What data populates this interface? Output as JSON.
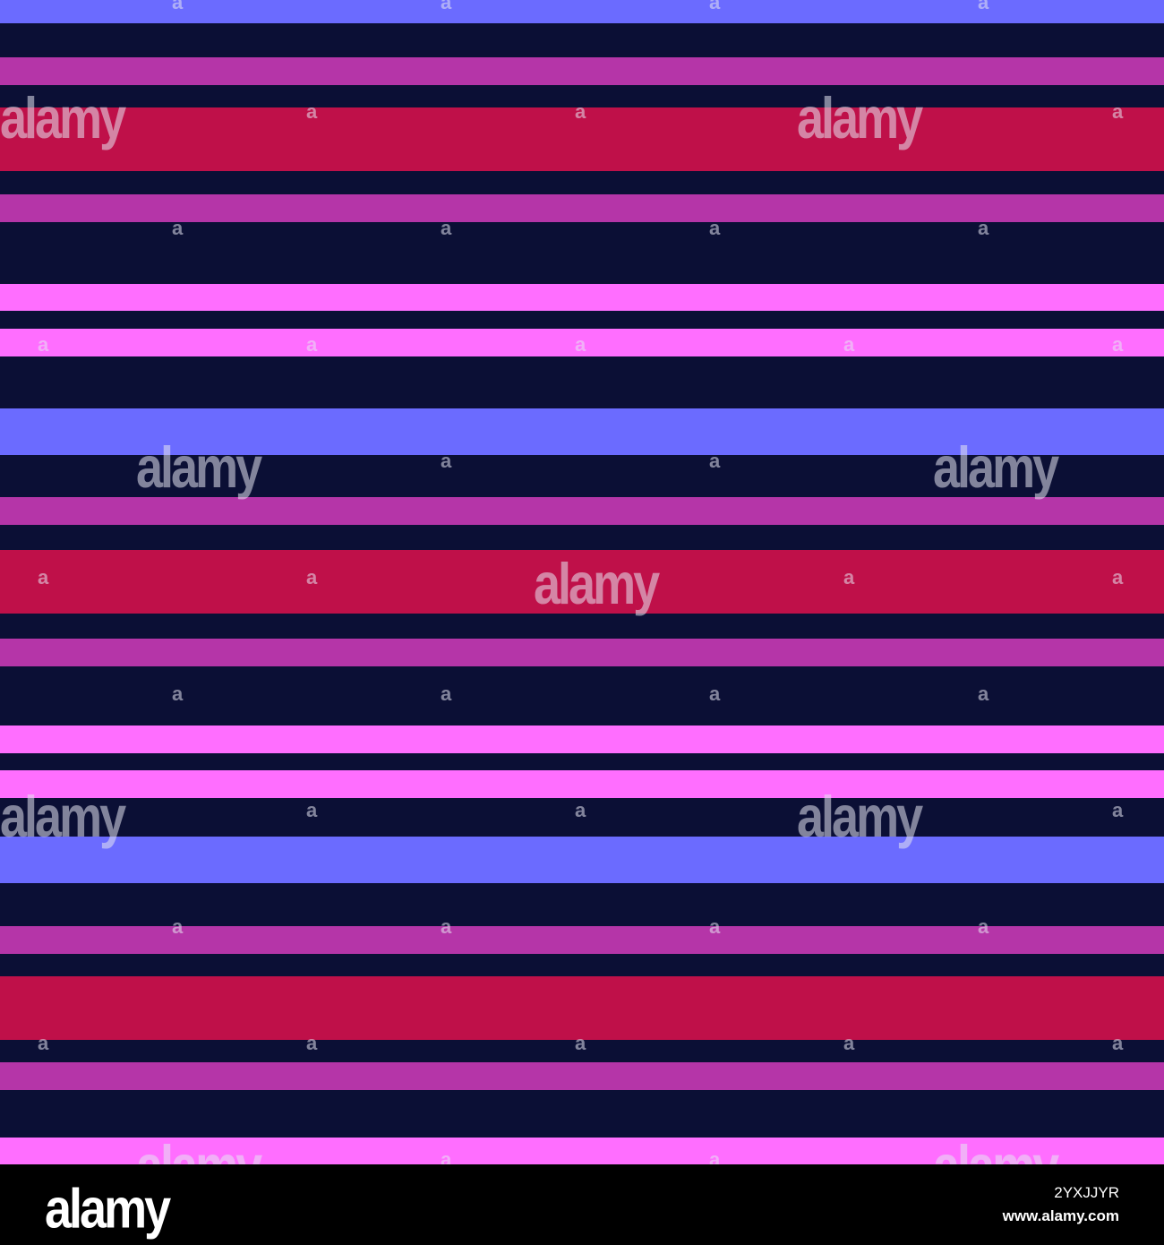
{
  "image": {
    "colors": {
      "background": "#0b0f35",
      "periwinkle": "#6b6bff",
      "magenta": "#b535a8",
      "crimson": "#bf1049",
      "pink": "#ff6eff",
      "footer": "#000000"
    },
    "stripes": [
      {
        "name": "stripe-periwinkle",
        "color": "#6b6bff"
      },
      {
        "name": "stripe-magenta",
        "color": "#b535a8"
      },
      {
        "name": "stripe-crimson",
        "color": "#bf1049"
      },
      {
        "name": "stripe-magenta",
        "color": "#b535a8"
      },
      {
        "name": "stripe-pink",
        "color": "#ff6eff"
      },
      {
        "name": "stripe-pink",
        "color": "#ff6eff"
      },
      {
        "name": "stripe-periwinkle",
        "color": "#6b6bff"
      },
      {
        "name": "stripe-magenta",
        "color": "#b535a8"
      },
      {
        "name": "stripe-crimson",
        "color": "#bf1049"
      },
      {
        "name": "stripe-magenta",
        "color": "#b535a8"
      },
      {
        "name": "stripe-pink",
        "color": "#ff6eff"
      },
      {
        "name": "stripe-pink",
        "color": "#ff6eff"
      },
      {
        "name": "stripe-periwinkle",
        "color": "#6b6bff"
      },
      {
        "name": "stripe-magenta",
        "color": "#b535a8"
      },
      {
        "name": "stripe-crimson",
        "color": "#bf1049"
      },
      {
        "name": "stripe-magenta",
        "color": "#b535a8"
      },
      {
        "name": "stripe-pink",
        "color": "#ff6eff"
      }
    ],
    "watermark": {
      "word": "alamy",
      "letter": "a"
    }
  },
  "footer": {
    "logo": "alamy",
    "image_id": "2YXJJYR",
    "url": "www.alamy.com"
  }
}
